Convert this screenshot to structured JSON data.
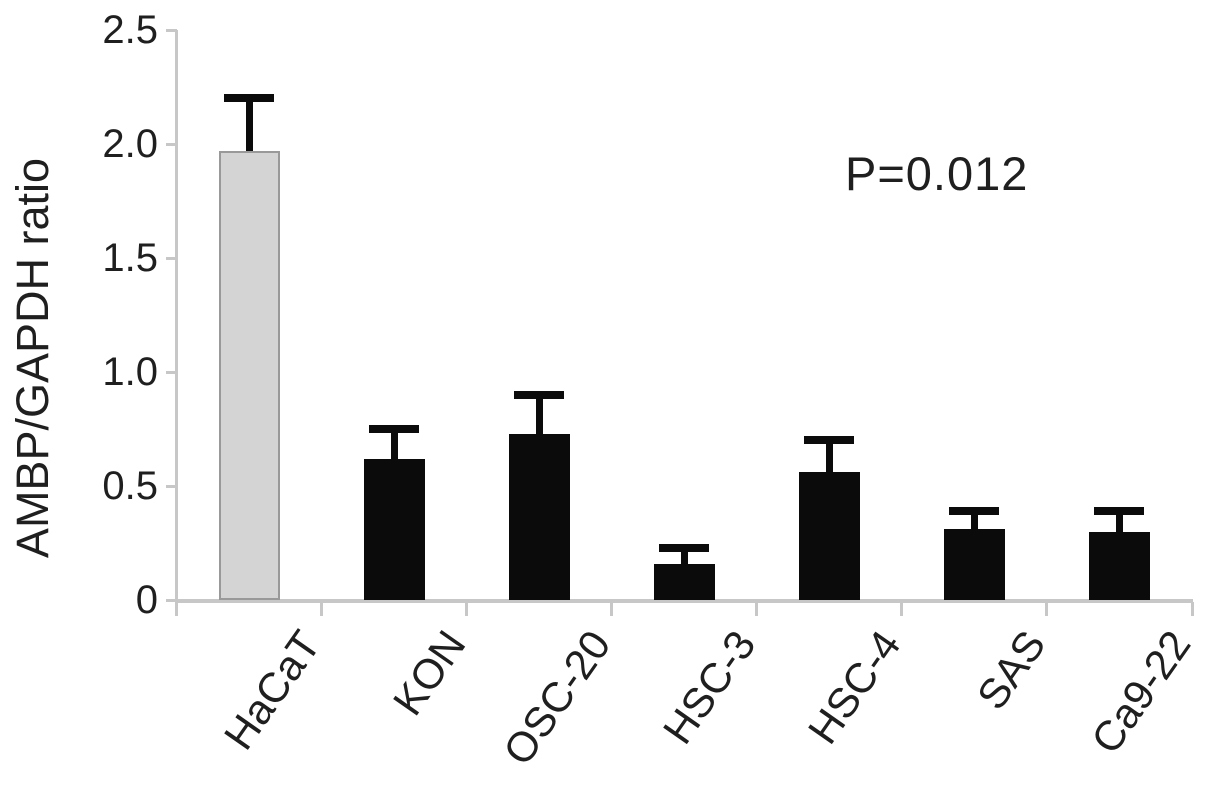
{
  "figure": {
    "background": "#ffffff"
  },
  "chart_data": {
    "type": "bar",
    "title": "",
    "xlabel": "",
    "ylabel": "AMBP/GAPDH ratio",
    "categories": [
      "HaCaT",
      "KON",
      "OSC-20",
      "HSC-3",
      "HSC-4",
      "SAS",
      "Ca9-22"
    ],
    "values": [
      1.97,
      0.62,
      0.73,
      0.16,
      0.56,
      0.31,
      0.3
    ],
    "errors_plus": [
      0.23,
      0.13,
      0.17,
      0.07,
      0.14,
      0.08,
      0.09
    ],
    "ylim": [
      0,
      2.5
    ],
    "yticks": [
      0,
      0.5,
      1.0,
      1.5,
      2.0,
      2.5
    ],
    "ytick_labels": [
      "0",
      "0.5",
      "1.0",
      "1.5",
      "2.0",
      "2.5"
    ],
    "grid": false,
    "legend": false,
    "annotation": "P=0.012",
    "bar_colors": [
      "#d4d4d4",
      "#0b0b0b",
      "#0b0b0b",
      "#0b0b0b",
      "#0b0b0b",
      "#0b0b0b",
      "#0b0b0b"
    ],
    "highlight_bar_border": "#999999",
    "error_bar_color": "#0b0b0b",
    "axis_color": "#c7c7c7",
    "text_color": "#1f1f1f"
  }
}
